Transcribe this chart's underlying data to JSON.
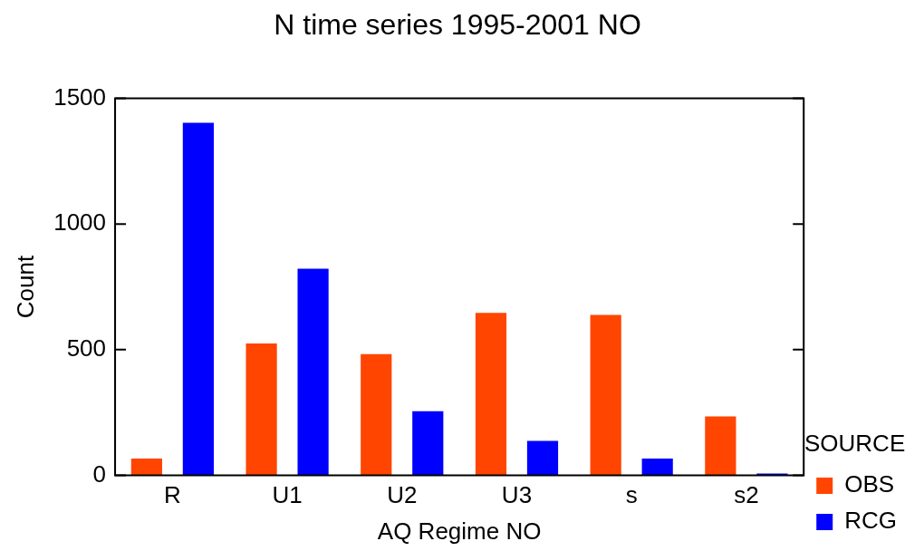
{
  "chart_data": {
    "type": "bar",
    "title": "N time series 1995-2001 NO",
    "xlabel": "AQ Regime NO",
    "ylabel": "Count",
    "legend_title": "SOURCE",
    "categories": [
      "R",
      "U1",
      "U2",
      "U3",
      "s",
      "s2"
    ],
    "series": [
      {
        "name": "OBS",
        "color": "#ff4500",
        "values": [
          67,
          525,
          482,
          646,
          638,
          235
        ]
      },
      {
        "name": "RCG",
        "color": "#0000ff",
        "values": [
          1402,
          822,
          255,
          137,
          67,
          8
        ]
      }
    ],
    "ylim": [
      0,
      1500
    ],
    "yticks": [
      0,
      500,
      1000,
      1500
    ],
    "grid": false,
    "legend": "right"
  }
}
